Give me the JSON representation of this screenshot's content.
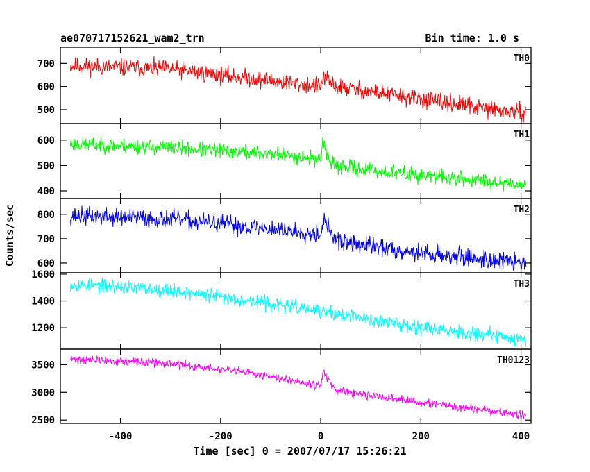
{
  "header": {
    "title": "ae070717152621_wam2_trn",
    "bin_time": "Bin time: 1.0 s"
  },
  "chart_data": {
    "type": "line",
    "xlabel": "Time [sec] 0 = 2007/07/17 15:26:21",
    "ylabel": "Counts/sec",
    "xlim": [
      -520,
      420
    ],
    "xticks": [
      "-400",
      "-200",
      "0",
      "200",
      "400"
    ],
    "xtick_values": [
      -400,
      -200,
      0,
      200,
      400
    ],
    "x_start": -500,
    "x_end": 410,
    "panels": [
      {
        "name": "TH0",
        "color": "#ff0000",
        "ylim": [
          440,
          770
        ],
        "yticks": [
          "500",
          "600",
          "700"
        ],
        "ytick_values": [
          500,
          600,
          700
        ],
        "trend": [
          [
            -500,
            690
          ],
          [
            -300,
            675
          ],
          [
            -100,
            625
          ],
          [
            0,
            600
          ],
          [
            5,
            640
          ],
          [
            30,
            600
          ],
          [
            200,
            545
          ],
          [
            410,
            480
          ]
        ],
        "noise": 35,
        "seed": 11
      },
      {
        "name": "TH1",
        "color": "#00ff00",
        "ylim": [
          370,
          665
        ],
        "yticks": [
          "400",
          "500",
          "600"
        ],
        "ytick_values": [
          400,
          500,
          600
        ],
        "trend": [
          [
            -500,
            585
          ],
          [
            -300,
            570
          ],
          [
            -100,
            545
          ],
          [
            0,
            525
          ],
          [
            5,
            600
          ],
          [
            20,
            500
          ],
          [
            150,
            470
          ],
          [
            410,
            425
          ]
        ],
        "noise": 28,
        "seed": 23
      },
      {
        "name": "TH2",
        "color": "#0000ff",
        "ylim": [
          560,
          865
        ],
        "yticks": [
          "600",
          "700",
          "800"
        ],
        "ytick_values": [
          600,
          700,
          800
        ],
        "trend": [
          [
            -500,
            795
          ],
          [
            -300,
            780
          ],
          [
            -100,
            740
          ],
          [
            0,
            720
          ],
          [
            5,
            780
          ],
          [
            30,
            690
          ],
          [
            200,
            640
          ],
          [
            410,
            600
          ]
        ],
        "noise": 35,
        "seed": 37
      },
      {
        "name": "TH3",
        "color": "#00ffff",
        "ylim": [
          1040,
          1610
        ],
        "yticks": [
          "1200",
          "1400",
          "1600"
        ],
        "ytick_values": [
          1200,
          1400,
          1600
        ],
        "trend": [
          [
            -500,
            1525
          ],
          [
            -300,
            1480
          ],
          [
            -100,
            1380
          ],
          [
            0,
            1320
          ],
          [
            150,
            1230
          ],
          [
            410,
            1110
          ]
        ],
        "noise": 50,
        "seed": 53
      },
      {
        "name": "TH0123",
        "color": "#ff00ff",
        "ylim": [
          2440,
          3780
        ],
        "yticks": [
          "2500",
          "3000",
          "3500"
        ],
        "ytick_values": [
          2500,
          3000,
          3500
        ],
        "trend": [
          [
            -500,
            3600
          ],
          [
            -300,
            3520
          ],
          [
            -100,
            3300
          ],
          [
            0,
            3120
          ],
          [
            5,
            3380
          ],
          [
            30,
            3020
          ],
          [
            200,
            2820
          ],
          [
            410,
            2580
          ]
        ],
        "noise": 70,
        "seed": 71
      }
    ]
  }
}
